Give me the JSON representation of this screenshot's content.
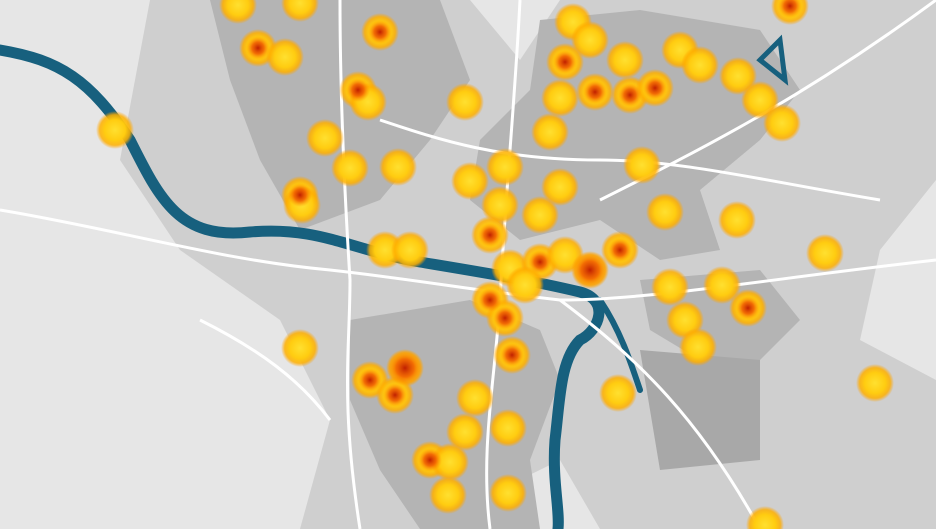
{
  "map": {
    "type": "heatmap",
    "colors": {
      "background": "#e6e6e6",
      "urban": "#b4b4b4",
      "urban_light": "#cfcfcf",
      "water": "#17607e",
      "roads": "#ffffff",
      "heat_low": "#ffd21a",
      "heat_mid": "#ff8a00",
      "heat_high": "#c81e00"
    }
  }
}
